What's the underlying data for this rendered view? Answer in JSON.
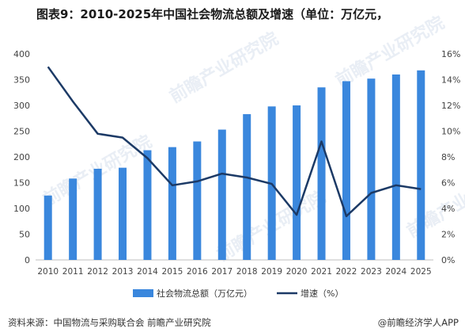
{
  "title": "图表9：2010-2025年中国社会物流总额及增速（单位：万亿元，",
  "footer": {
    "source": "资料来源：中国物流与采购联合会  前瞻产业研究院",
    "brand": "@前瞻经济学人APP"
  },
  "watermark": "前瞻产业研究院",
  "colors": {
    "bar": "#3a87dd",
    "line": "#1c3a66"
  },
  "chart_data": {
    "type": "bar+line",
    "categories": [
      "2010",
      "2011",
      "2012",
      "2013",
      "2014",
      "2015",
      "2016",
      "2017",
      "2018",
      "2019",
      "2020",
      "2021",
      "2022",
      "2023",
      "2024",
      "2025"
    ],
    "series": [
      {
        "name": "社会物流总额（万亿元）",
        "type": "bar",
        "axis": "left",
        "values": [
          125,
          158,
          177,
          179,
          213,
          219,
          230,
          253,
          283,
          298,
          300,
          335,
          347,
          352,
          360,
          368
        ]
      },
      {
        "name": "增速（%）",
        "type": "line",
        "axis": "right",
        "values": [
          15.0,
          12.3,
          9.8,
          9.5,
          7.9,
          5.8,
          6.1,
          6.7,
          6.4,
          5.9,
          3.5,
          9.2,
          3.4,
          5.2,
          5.8,
          5.5
        ]
      }
    ],
    "y_left": {
      "min": 0,
      "max": 400,
      "ticks": [
        "0",
        "50",
        "100",
        "150",
        "200",
        "250",
        "300",
        "350",
        "400"
      ]
    },
    "y_right": {
      "min": 0,
      "max": 16,
      "ticks": [
        "0%",
        "2%",
        "4%",
        "6%",
        "8%",
        "10%",
        "12%",
        "14%",
        "16%"
      ]
    },
    "legend_position": "bottom-center",
    "grid": false
  }
}
